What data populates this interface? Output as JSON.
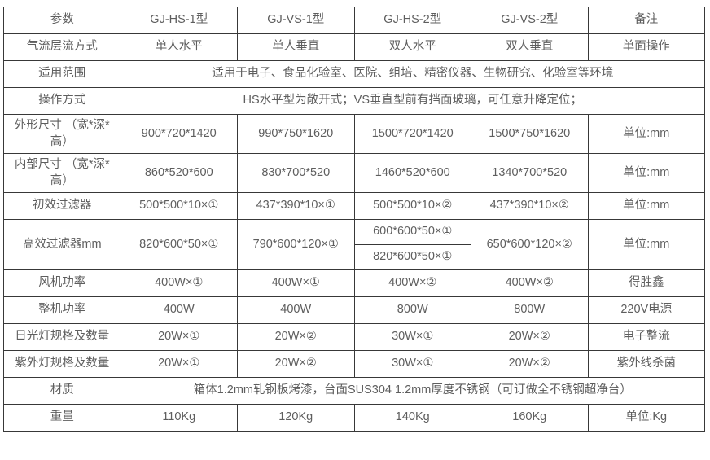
{
  "colors": {
    "border": "#383838",
    "text": "#5e5e5e",
    "background": "#ffffff"
  },
  "table": {
    "header": {
      "label": "参数",
      "models": [
        "GJ-HS-1型",
        "GJ-VS-1型",
        "GJ-HS-2型",
        "GJ-VS-2型"
      ],
      "remark": "备注"
    },
    "rows": {
      "airflow": {
        "label": "气流层流方式",
        "cells": [
          "单人水平",
          "单人垂直",
          "双人水平",
          "双人垂直"
        ],
        "remark": "单面操作"
      },
      "application": {
        "label": "适用范围",
        "span": "适用于电子、食品化验室、医院、组培、精密仪器、生物研究、化验室等环境"
      },
      "operation": {
        "label": "操作方式",
        "span": "HS水平型为敞开式；VS垂直型前有挡面玻璃，可任意升降定位；"
      },
      "outer_size": {
        "label": "外形尺寸 （宽*深*高）",
        "cells": [
          "900*720*1420",
          "990*750*1620",
          "1500*720*1420",
          "1500*750*1620"
        ],
        "remark": "单位:mm"
      },
      "inner_size": {
        "label": "内部尺寸 （宽*深*高）",
        "cells": [
          "860*520*600",
          "830*700*520",
          "1460*520*600",
          "1340*700*520"
        ],
        "remark": "单位:mm"
      },
      "pre_filter": {
        "label": "初效过滤器",
        "cells": [
          "500*500*10×①",
          "437*390*10×①",
          "500*500*10×②",
          "437*390*10×②"
        ],
        "remark": "单位:mm"
      },
      "hepa_filter": {
        "label": "高效过滤器mm",
        "hs1": "820*600*50×①",
        "vs1": "790*600*120×①",
        "hs2_top": "600*600*50×①",
        "hs2_bottom": "820*600*50×①",
        "vs2": "650*600*120×②",
        "remark": "单位:mm"
      },
      "fan_power": {
        "label": "风机功率",
        "cells": [
          "400W×①",
          "400W×①",
          "400W×②",
          "400W×②"
        ],
        "remark": "得胜鑫"
      },
      "total_power": {
        "label": "整机功率",
        "cells": [
          "400W",
          "400W",
          "800W",
          "800W"
        ],
        "remark": "220V电源"
      },
      "fluorescent_lamp": {
        "label": "日光灯规格及数量",
        "cells": [
          "20W×①",
          "20W×②",
          "30W×①",
          "20W×②"
        ],
        "remark": "电子整流"
      },
      "uv_lamp": {
        "label": "紫外灯规格及数量",
        "cells": [
          "20W×①",
          "20W×②",
          "30W×①",
          "20W×②"
        ],
        "remark": "紫外线杀菌"
      },
      "material": {
        "label": "材质",
        "span": "箱体1.2mm轧钢板烤漆，台面SUS304 1.2mm厚度不锈钢（可订做全不锈钢超净台）"
      },
      "weight": {
        "label": "重量",
        "cells": [
          "110Kg",
          "120Kg",
          "140Kg",
          "160Kg"
        ],
        "remark": "单位:Kg"
      }
    }
  }
}
